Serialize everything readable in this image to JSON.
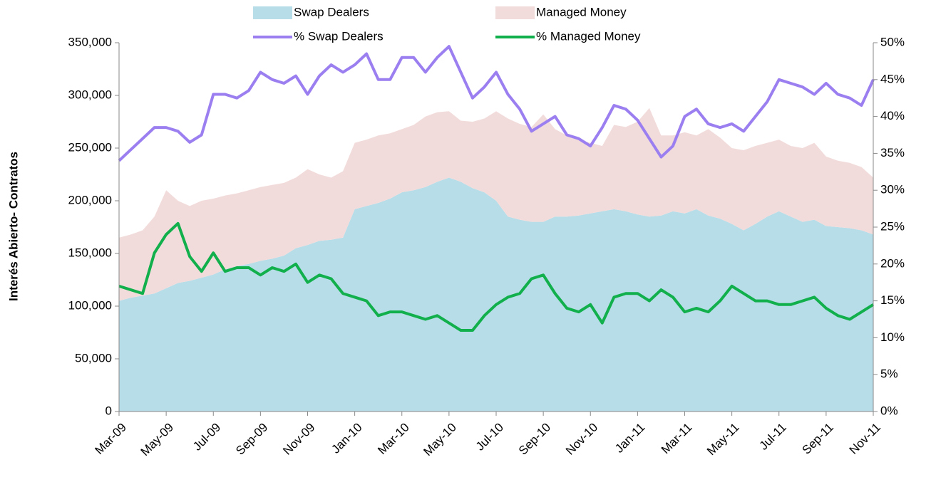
{
  "chart_data": {
    "type": "area",
    "y_label": "Interés Abierto- Contratos",
    "categories": [
      "Mar-09",
      null,
      null,
      null,
      "May-09",
      null,
      null,
      null,
      "Jul-09",
      null,
      null,
      null,
      "Sep-09",
      null,
      null,
      null,
      "Nov-09",
      null,
      null,
      null,
      "Jan-10",
      null,
      null,
      null,
      "Mar-10",
      null,
      null,
      null,
      "May-10",
      null,
      null,
      null,
      "Jul-10",
      null,
      null,
      null,
      "Sep-10",
      null,
      null,
      null,
      "Nov-10",
      null,
      null,
      null,
      "Jan-11",
      null,
      null,
      null,
      "Mar-11",
      null,
      null,
      null,
      "May-11",
      null,
      null,
      null,
      "Jul-11",
      null,
      null,
      null,
      "Sep-11",
      null,
      null,
      null,
      "Nov-11"
    ],
    "ylim": [
      0,
      350000
    ],
    "yticks": [
      0,
      {
        "value": 50000,
        "label": "50,000"
      },
      {
        "value": 100000,
        "label": "100,000"
      },
      {
        "value": 150000,
        "label": "150,000"
      },
      {
        "value": 200000,
        "label": "200,000"
      },
      {
        "value": 250000,
        "label": "250,000"
      },
      {
        "value": 300000,
        "label": "300,000"
      },
      {
        "value": 350000,
        "label": "350,000"
      }
    ],
    "y2lim": [
      0,
      50
    ],
    "y2ticks": [
      {
        "value": 0,
        "label": "0%"
      },
      {
        "value": 5,
        "label": "5%"
      },
      {
        "value": 10,
        "label": "10%"
      },
      {
        "value": 15,
        "label": "15%"
      },
      {
        "value": 20,
        "label": "20%"
      },
      {
        "value": 25,
        "label": "25%"
      },
      {
        "value": 30,
        "label": "30%"
      },
      {
        "value": 35,
        "label": "35%"
      },
      {
        "value": 40,
        "label": "40%"
      },
      {
        "value": 45,
        "label": "45%"
      },
      {
        "value": 50,
        "label": "50%"
      }
    ],
    "series": [
      {
        "name": "Swap Dealers",
        "kind": "area",
        "color": "#b7dde8",
        "values": [
          105000,
          108000,
          110000,
          112000,
          117000,
          122000,
          124000,
          127000,
          130000,
          135000,
          138000,
          140000,
          143000,
          145000,
          148000,
          155000,
          158000,
          162000,
          163000,
          165000,
          192000,
          195000,
          198000,
          202000,
          208000,
          210000,
          213000,
          218000,
          222000,
          218000,
          212000,
          208000,
          200000,
          185000,
          182000,
          180000,
          180000,
          185000,
          185000,
          186000,
          188000,
          190000,
          192000,
          190000,
          187000,
          185000,
          186000,
          190000,
          188000,
          192000,
          186000,
          183000,
          178000,
          172000,
          178000,
          185000,
          190000,
          185000,
          180000,
          182000,
          176000,
          175000,
          174000,
          172000,
          168000
        ]
      },
      {
        "name": "Managed Money",
        "kind": "area",
        "color": "#f2dcdb",
        "values": [
          60000,
          60000,
          62000,
          73000,
          93000,
          78000,
          71000,
          73000,
          72000,
          70000,
          69000,
          70000,
          70000,
          70000,
          69000,
          67000,
          72000,
          63000,
          59000,
          63000,
          63000,
          63000,
          64000,
          62000,
          60000,
          62000,
          67000,
          66000,
          63000,
          58000,
          63000,
          70000,
          85000,
          93000,
          91000,
          90000,
          102000,
          83000,
          77000,
          72000,
          67000,
          62000,
          80000,
          80000,
          88000,
          103000,
          76000,
          72000,
          77000,
          70000,
          82000,
          77000,
          72000,
          76000,
          74000,
          70000,
          68000,
          67000,
          70000,
          73000,
          66000,
          63000,
          62000,
          60000,
          54000
        ]
      },
      {
        "name": "% Swap Dealers",
        "kind": "line",
        "axis": "y2",
        "color": "#9b7ff0",
        "values": [
          34,
          35.5,
          37,
          38.5,
          38.5,
          38,
          36.5,
          37.5,
          43,
          43,
          42.5,
          43.5,
          46,
          45,
          44.5,
          45.5,
          43,
          45.5,
          47,
          46,
          47,
          48.5,
          45,
          45,
          48,
          48,
          46,
          48,
          49.5,
          46,
          42.5,
          44,
          46,
          43,
          41,
          38,
          39,
          40,
          37.5,
          37,
          36,
          38.5,
          41.5,
          41,
          39.5,
          37,
          34.5,
          36,
          40,
          41,
          39,
          38.5,
          39,
          38,
          40,
          42,
          45,
          44.5,
          44,
          43,
          44.5,
          43,
          42.5,
          41.5,
          45
        ]
      },
      {
        "name": "% Managed Money",
        "kind": "line",
        "axis": "y2",
        "color": "#12b04c",
        "values": [
          17,
          16.5,
          16,
          21.5,
          24,
          25.5,
          21,
          19,
          21.5,
          19,
          19.5,
          19.5,
          18.5,
          19.5,
          19,
          20,
          17.5,
          18.5,
          18,
          16,
          15.5,
          15,
          13,
          13.5,
          13.5,
          13,
          12.5,
          13,
          12,
          11,
          11,
          13,
          14.5,
          15.5,
          16,
          18,
          18.5,
          16,
          14,
          13.5,
          14.5,
          12,
          15.5,
          16,
          16,
          15,
          16.5,
          15.5,
          13.5,
          14,
          13.5,
          15,
          17,
          16,
          15,
          15,
          14.5,
          14.5,
          15,
          15.5,
          14,
          13,
          12.5,
          13.5,
          14.5
        ]
      }
    ]
  }
}
